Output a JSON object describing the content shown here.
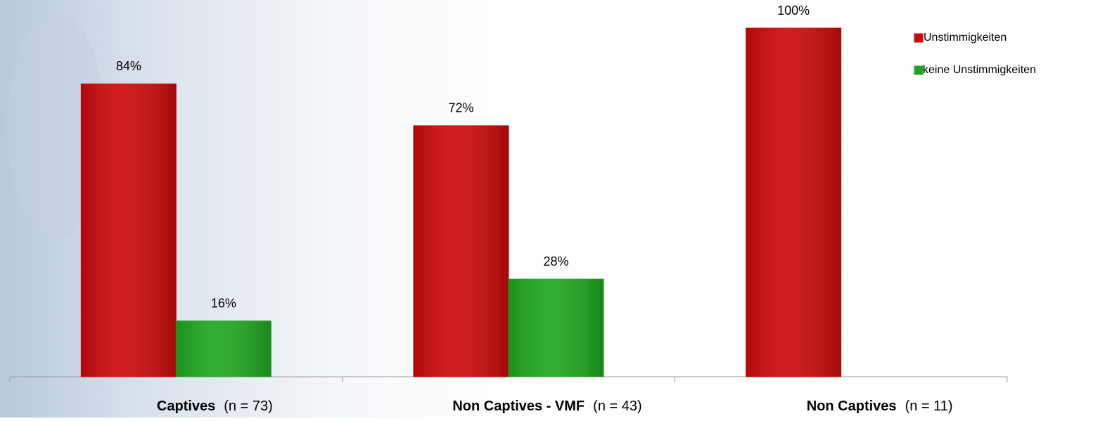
{
  "chart_data": {
    "type": "bar",
    "categories": [
      "Captives",
      "Non Captives - VMF",
      "Non Captives"
    ],
    "category_notes": [
      "(n = 73)",
      "(n = 43)",
      "(n = 11)"
    ],
    "series": [
      {
        "name": "Unstimmigkeiten",
        "color": "#cc0a0a",
        "values": [
          84,
          72,
          100
        ],
        "value_labels": [
          "84%",
          "72%",
          "100%"
        ]
      },
      {
        "name": "keine Unstimmigkeiten",
        "color": "#1fa81f",
        "values": [
          16,
          28,
          null
        ],
        "value_labels": [
          "16%",
          "28%",
          null
        ]
      }
    ],
    "ylim": [
      0,
      100
    ],
    "legend": "top-right"
  }
}
